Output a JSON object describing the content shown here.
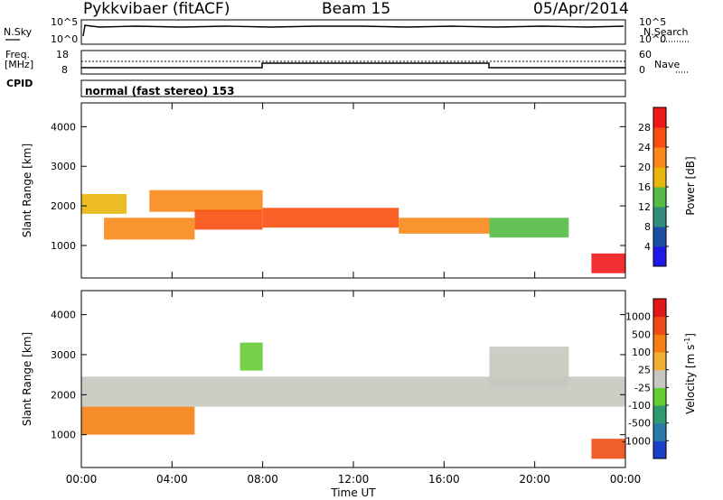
{
  "header": {
    "station": "Pykkvibaer (fitACF)",
    "beam": "Beam 15",
    "date": "05/Apr/2014"
  },
  "noise_panel": {
    "left_label": "N.Sky",
    "right_label": "N.Search",
    "left_ticks": [
      "10^5",
      "10^0"
    ],
    "right_ticks": [
      "10^5",
      "10^0"
    ]
  },
  "freq_panel": {
    "left_label_1": "Freq.",
    "left_label_2": "[MHz]",
    "right_label": "Nave",
    "left_ticks": [
      "18",
      "8"
    ],
    "right_ticks": [
      "60",
      "0"
    ]
  },
  "cpid": {
    "label": "CPID",
    "value": "normal (fast stereo) 153"
  },
  "chart_data": [
    {
      "type": "heatmap",
      "name_ref": "power",
      "ylabel": "Slant Range [km]",
      "xlabel": "",
      "ylim": [
        180,
        4600
      ],
      "yticks": [
        1000,
        2000,
        3000,
        4000
      ],
      "xlim": [
        0,
        24
      ],
      "x_tick_labels": [
        "00:00",
        "04:00",
        "08:00",
        "12:00",
        "16:00",
        "20:00",
        "00:00"
      ],
      "colorbar": {
        "label": "Power [dB]",
        "ticks": [
          "4",
          "8",
          "12",
          "16",
          "20",
          "24",
          "28"
        ],
        "colors": [
          "#1e18e8",
          "#1c4ea6",
          "#2f8d7a",
          "#54bb45",
          "#eab60d",
          "#fa8818",
          "#f74f10",
          "#ee1a1a"
        ]
      },
      "bands": [
        {
          "t0": 0.0,
          "t1": 2.0,
          "r0": 1800,
          "r1": 2300,
          "level": 4
        },
        {
          "t0": 1.0,
          "t1": 5.0,
          "r0": 1150,
          "r1": 1700,
          "level": 5
        },
        {
          "t0": 3.0,
          "t1": 8.0,
          "r0": 1850,
          "r1": 2400,
          "level": 5
        },
        {
          "t0": 5.0,
          "t1": 8.0,
          "r0": 1400,
          "r1": 1900,
          "level": 6
        },
        {
          "t0": 8.0,
          "t1": 14.0,
          "r0": 1450,
          "r1": 1950,
          "level": 6
        },
        {
          "t0": 14.0,
          "t1": 18.0,
          "r0": 1300,
          "r1": 1700,
          "level": 5
        },
        {
          "t0": 18.0,
          "t1": 21.5,
          "r0": 1200,
          "r1": 1700,
          "level": 3
        },
        {
          "t0": 22.5,
          "t1": 24.0,
          "r0": 300,
          "r1": 800,
          "level": 7
        }
      ]
    },
    {
      "type": "heatmap",
      "name_ref": "velocity",
      "ylabel": "Slant Range [km]",
      "xlabel": "Time UT",
      "ylim": [
        180,
        4600
      ],
      "yticks": [
        1000,
        2000,
        3000,
        4000
      ],
      "xlim": [
        0,
        24
      ],
      "x_tick_labels": [
        "00:00",
        "04:00",
        "08:00",
        "12:00",
        "16:00",
        "20:00",
        "00:00"
      ],
      "colorbar": {
        "label": "Velocity [m s",
        "label_sup": "-1",
        "label_end": "]",
        "ticks": [
          "1000",
          "500",
          "100",
          "25",
          "-25",
          "-100",
          "-500",
          "-1000"
        ],
        "colors": [
          "#1b3fc8",
          "#2a7aa8",
          "#2e9a6e",
          "#66cc33",
          "#c8c8c0",
          "#f0b030",
          "#f57f10",
          "#ee4c14",
          "#e01818"
        ]
      },
      "bands": [
        {
          "t0": 0.0,
          "t1": 24.0,
          "r0": 1700,
          "r1": 2450,
          "level": 4
        },
        {
          "t0": 0.0,
          "t1": 5.0,
          "r0": 1000,
          "r1": 1700,
          "level": 6
        },
        {
          "t0": 7.0,
          "t1": 8.0,
          "r0": 2600,
          "r1": 3300,
          "level": 3
        },
        {
          "t0": 18.0,
          "t1": 21.5,
          "r0": 2200,
          "r1": 3200,
          "level": 4
        },
        {
          "t0": 22.5,
          "t1": 24.0,
          "r0": 400,
          "r1": 900,
          "level": 7
        }
      ]
    }
  ]
}
